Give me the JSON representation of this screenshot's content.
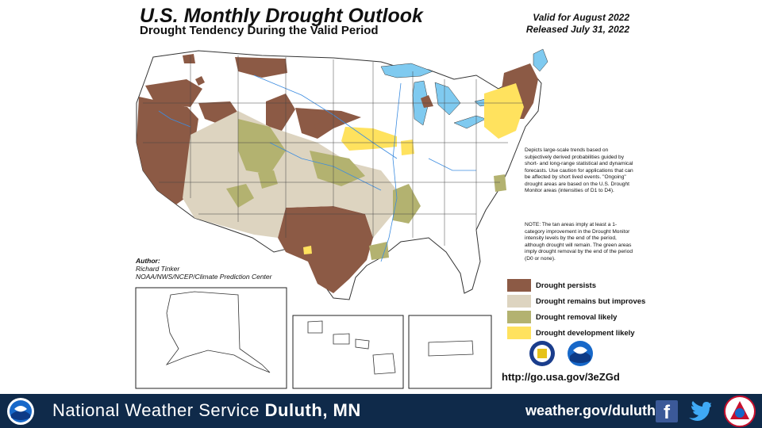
{
  "header": {
    "title": "U.S. Monthly Drought Outlook",
    "subtitle": "Drought Tendency During the Valid Period",
    "valid": "Valid for August 2022",
    "released": "Released July 31, 2022"
  },
  "description": "Depicts large-scale trends based on subjectively derived probabilities guided by short- and long-range statistical and dynamical forecasts. Use caution for applications that can be affected by short lived events. \"Ongoing\" drought areas are based on the U.S. Drought Monitor areas (intensities of D1 to D4).",
  "note": "NOTE: The tan areas imply at least a 1-category improvement in the Drought Monitor intensity levels by the end of the period, although drought will remain. The green areas imply drought removal by the end of the period (D0 or none).",
  "author": {
    "heading": "Author:",
    "name": "Richard Tinker",
    "org": "NOAA/NWS/NCEP/Climate Prediction Center"
  },
  "legend": [
    {
      "label": "Drought persists",
      "color": "#8c5a45"
    },
    {
      "label": "Drought remains but improves",
      "color": "#ddd4c0"
    },
    {
      "label": "Drought removal likely",
      "color": "#b3b270"
    },
    {
      "label": "Drought development likely",
      "color": "#ffe25e"
    }
  ],
  "url": "http://go.usa.gov/3eZGd",
  "footer": {
    "org": "National Weather Service",
    "office": "Duluth, MN",
    "website": "weather.gov/duluth"
  },
  "icons": [
    "noaa-logo-icon",
    "doc-seal-icon",
    "facebook-icon",
    "twitter-icon",
    "nws-seal-icon"
  ],
  "colors": {
    "persists": "#8c5a45",
    "improves": "#ddd4c0",
    "removal": "#b3b270",
    "development": "#ffe25e",
    "water": "#7fcaf0",
    "footer": "#0f2a4a"
  }
}
